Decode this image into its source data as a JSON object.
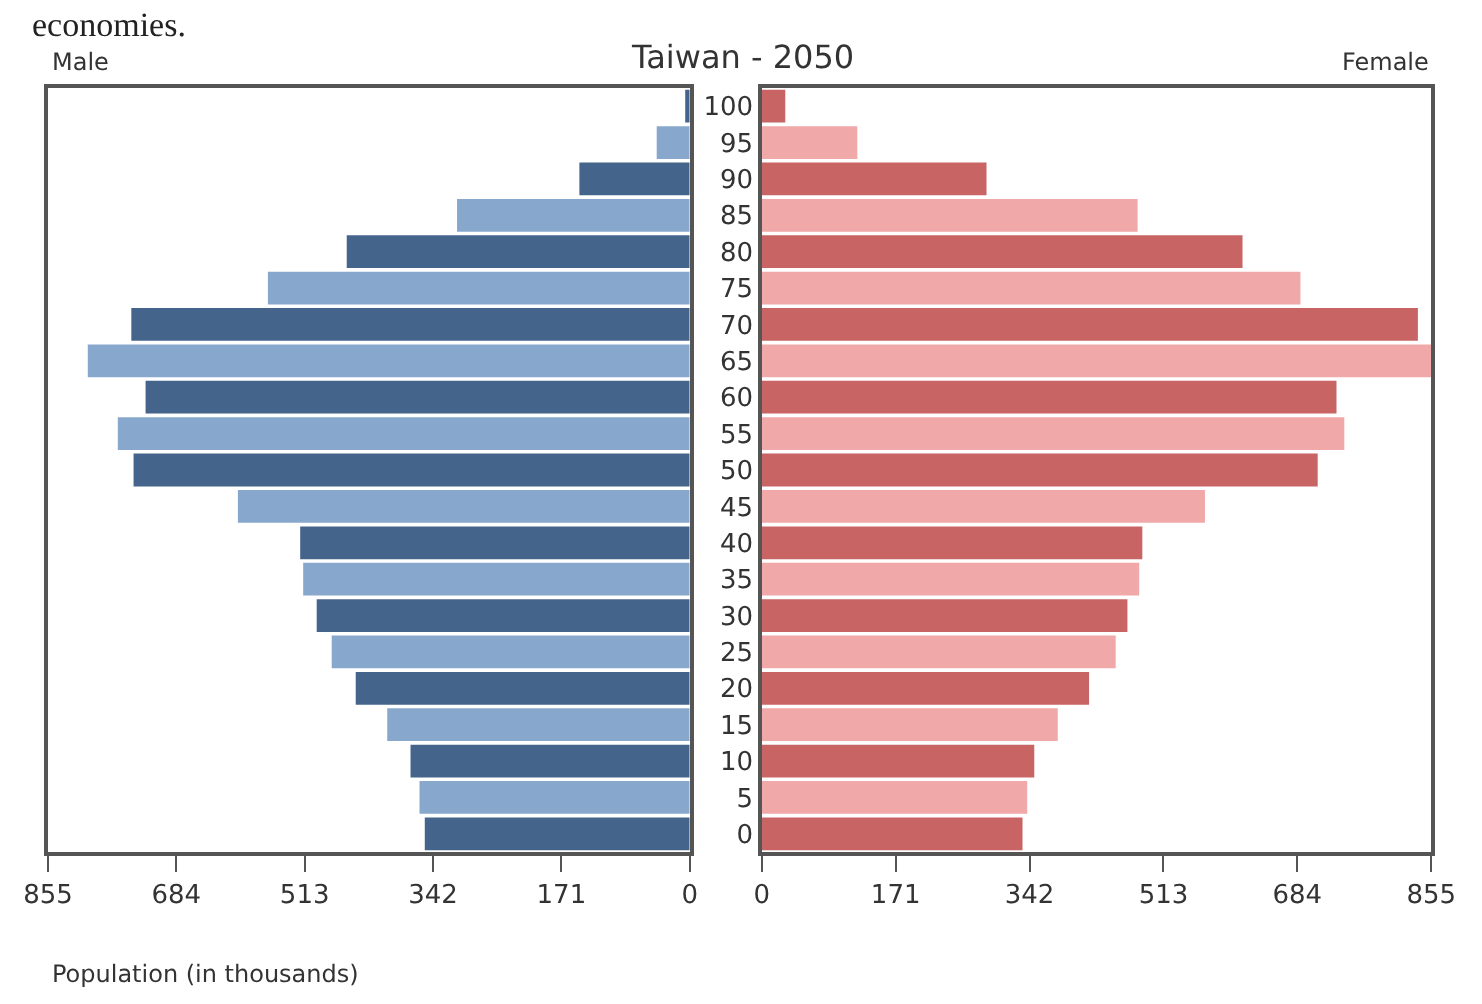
{
  "chart_data": [
    {
      "type": "bar",
      "orientation": "horizontal",
      "title": "Taiwan - 2050",
      "xlabel": "Population (in thousands)",
      "annotations": [
        "economies."
      ],
      "categories": [
        "100",
        "95",
        "90",
        "85",
        "80",
        "75",
        "70",
        "65",
        "60",
        "55",
        "50",
        "45",
        "40",
        "35",
        "30",
        "25",
        "20",
        "15",
        "10",
        "5",
        "0"
      ],
      "series": [
        {
          "name": "Male",
          "colors": [
            "#44648c",
            "#87a8cc",
            "#44648c",
            "#87a8cc",
            "#44648c",
            "#87a8cc",
            "#44648c",
            "#87a8cc",
            "#44648c",
            "#87a8cc",
            "#44648c",
            "#87a8cc",
            "#44648c",
            "#87a8cc",
            "#44648c",
            "#87a8cc",
            "#44648c",
            "#87a8cc",
            "#44648c",
            "#87a8cc",
            "#44648c"
          ],
          "values": [
            6,
            44,
            147,
            310,
            457,
            562,
            744,
            802,
            725,
            762,
            741,
            602,
            519,
            515,
            497,
            477,
            445,
            403,
            372,
            360,
            353
          ]
        }
      ],
      "xlim": [
        855,
        0
      ],
      "xticks": [
        855,
        684,
        513,
        342,
        171,
        0
      ],
      "tick_labels": "x"
    },
    {
      "type": "bar",
      "orientation": "horizontal",
      "categories": [
        "100",
        "95",
        "90",
        "85",
        "80",
        "75",
        "70",
        "65",
        "60",
        "55",
        "50",
        "45",
        "40",
        "35",
        "30",
        "25",
        "20",
        "15",
        "10",
        "5",
        "0"
      ],
      "series": [
        {
          "name": "Female",
          "colors": [
            "#c86464",
            "#f0a8a8",
            "#c86464",
            "#f0a8a8",
            "#c86464",
            "#f0a8a8",
            "#c86464",
            "#f0a8a8",
            "#c86464",
            "#f0a8a8",
            "#c86464",
            "#f0a8a8",
            "#c86464",
            "#f0a8a8",
            "#c86464",
            "#f0a8a8",
            "#c86464",
            "#f0a8a8",
            "#c86464",
            "#f0a8a8",
            "#c86464"
          ],
          "values": [
            30,
            122,
            287,
            480,
            614,
            688,
            838,
            855,
            734,
            744,
            710,
            566,
            486,
            482,
            467,
            452,
            418,
            378,
            348,
            339,
            333
          ]
        }
      ],
      "xlim": [
        0,
        855
      ],
      "xticks": [
        0,
        171,
        342,
        513,
        684,
        855
      ]
    }
  ]
}
